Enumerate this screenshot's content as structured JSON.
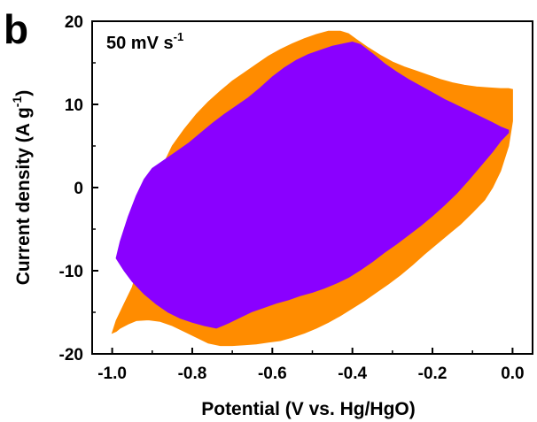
{
  "chart_data": {
    "type": "area",
    "panel_label": "b",
    "annotation": {
      "main": "50 mV s",
      "superscript": "-1"
    },
    "xlabel": "Potential (V vs. Hg/HgO)",
    "ylabel": {
      "main": "Current density (A g",
      "superscript": "-1",
      "close": ")"
    },
    "xlim": [
      -1.05,
      0.05
    ],
    "ylim": [
      -20,
      20
    ],
    "xticks": [
      -1.0,
      -0.8,
      -0.6,
      -0.4,
      -0.2,
      0.0
    ],
    "xtick_labels": [
      "-1.0",
      "-0.8",
      "-0.6",
      "-0.4",
      "-0.2",
      "0.0"
    ],
    "yticks": [
      -20,
      -10,
      0,
      10,
      20
    ],
    "ytick_labels": [
      "-20",
      "-10",
      "0",
      "10",
      "20"
    ],
    "grid": false,
    "series": [
      {
        "color": "#ff8c00",
        "x": [
          -1.0,
          -0.99,
          -0.97,
          -0.95,
          -0.93,
          -0.91,
          -0.89,
          -0.87,
          -0.85,
          -0.82,
          -0.79,
          -0.76,
          -0.73,
          -0.7,
          -0.67,
          -0.64,
          -0.61,
          -0.58,
          -0.55,
          -0.52,
          -0.49,
          -0.46,
          -0.43,
          -0.41,
          -0.39,
          -0.36,
          -0.33,
          -0.3,
          -0.27,
          -0.24,
          -0.21,
          -0.18,
          -0.15,
          -0.12,
          -0.09,
          -0.06,
          -0.03,
          -0.01,
          0.0,
          0.0,
          -0.01,
          -0.02,
          -0.03,
          -0.05,
          -0.07,
          -0.1,
          -0.13,
          -0.16,
          -0.19,
          -0.22,
          -0.25,
          -0.28,
          -0.31,
          -0.34,
          -0.37,
          -0.4,
          -0.43,
          -0.46,
          -0.49,
          -0.52,
          -0.55,
          -0.58,
          -0.61,
          -0.64,
          -0.67,
          -0.7,
          -0.73,
          -0.76,
          -0.79,
          -0.82,
          -0.85,
          -0.88,
          -0.91,
          -0.94,
          -0.96,
          -0.98,
          -0.99,
          -1.0
        ],
        "y": [
          -17.5,
          -16.0,
          -14.0,
          -12.0,
          -9.0,
          -5.0,
          0.5,
          3.0,
          5.0,
          7.0,
          8.8,
          10.3,
          11.6,
          12.8,
          13.8,
          14.8,
          15.8,
          16.6,
          17.3,
          17.9,
          18.4,
          18.8,
          18.8,
          18.5,
          17.8,
          16.8,
          15.9,
          15.1,
          14.5,
          14.0,
          13.5,
          13.0,
          12.6,
          12.3,
          12.1,
          12.0,
          11.9,
          11.9,
          11.8,
          8.0,
          5.0,
          3.5,
          2.0,
          0.0,
          -1.5,
          -3.0,
          -4.4,
          -5.6,
          -6.8,
          -8.0,
          -9.3,
          -10.5,
          -11.6,
          -12.6,
          -13.6,
          -14.5,
          -15.4,
          -16.2,
          -16.9,
          -17.5,
          -18.0,
          -18.4,
          -18.6,
          -18.8,
          -18.9,
          -19.0,
          -19.0,
          -18.7,
          -18.0,
          -17.3,
          -16.6,
          -16.1,
          -15.9,
          -16.0,
          -16.4,
          -16.9,
          -17.3,
          -17.5
        ]
      },
      {
        "color": "#8a00ff",
        "x": [
          -0.99,
          -0.98,
          -0.96,
          -0.94,
          -0.92,
          -0.9,
          -0.87,
          -0.84,
          -0.81,
          -0.78,
          -0.75,
          -0.72,
          -0.69,
          -0.66,
          -0.63,
          -0.6,
          -0.57,
          -0.54,
          -0.51,
          -0.48,
          -0.45,
          -0.42,
          -0.4,
          -0.38,
          -0.35,
          -0.32,
          -0.29,
          -0.26,
          -0.23,
          -0.2,
          -0.17,
          -0.14,
          -0.11,
          -0.08,
          -0.05,
          -0.03,
          -0.01,
          -0.01,
          -0.03,
          -0.05,
          -0.08,
          -0.11,
          -0.14,
          -0.17,
          -0.2,
          -0.23,
          -0.26,
          -0.29,
          -0.32,
          -0.35,
          -0.38,
          -0.41,
          -0.44,
          -0.47,
          -0.5,
          -0.53,
          -0.56,
          -0.59,
          -0.62,
          -0.65,
          -0.68,
          -0.71,
          -0.74,
          -0.77,
          -0.8,
          -0.83,
          -0.86,
          -0.89,
          -0.92,
          -0.95,
          -0.97,
          -0.99
        ],
        "y": [
          -8.5,
          -6.5,
          -3.5,
          -1.0,
          1.0,
          2.3,
          3.3,
          4.3,
          5.3,
          6.5,
          7.7,
          8.8,
          9.8,
          10.8,
          12.0,
          13.3,
          14.4,
          15.3,
          16.0,
          16.5,
          17.0,
          17.3,
          17.5,
          17.2,
          16.1,
          14.9,
          13.9,
          13.0,
          12.2,
          11.4,
          10.6,
          9.9,
          9.2,
          8.5,
          7.8,
          7.3,
          6.9,
          6.6,
          5.6,
          4.3,
          2.6,
          0.9,
          -0.7,
          -2.1,
          -3.4,
          -4.6,
          -5.7,
          -6.8,
          -7.8,
          -8.9,
          -9.9,
          -10.8,
          -11.5,
          -12.1,
          -12.6,
          -13.0,
          -13.5,
          -13.9,
          -14.4,
          -14.9,
          -15.6,
          -16.3,
          -16.9,
          -16.6,
          -16.2,
          -15.7,
          -15.0,
          -14.0,
          -12.8,
          -11.3,
          -10.0,
          -8.5
        ]
      }
    ]
  }
}
